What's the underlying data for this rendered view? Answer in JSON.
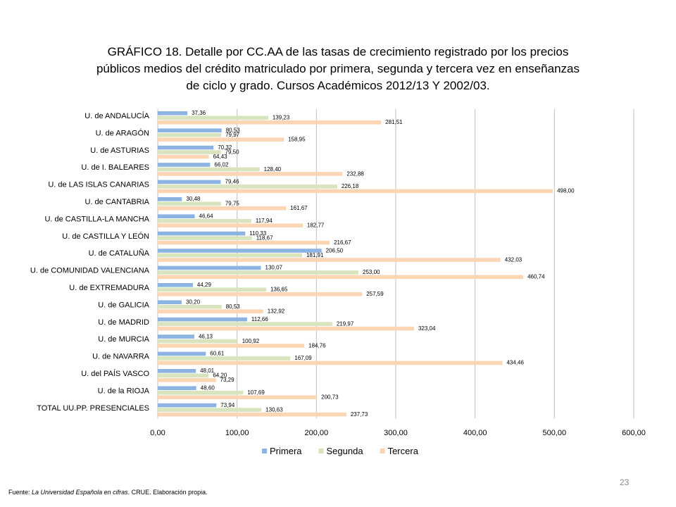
{
  "title_lines": [
    "GRÁFICO 18. Detalle por CC.AA de las tasas de crecimiento registrado por los precios",
    "públicos medios del crédito matriculado por primera, segunda y tercera vez en enseñanzas",
    "de ciclo y grado. Cursos Académicos  2012/13 Y 2002/03."
  ],
  "source": {
    "prefix": "Fuente: ",
    "italic": "La Universidad Española en cifras",
    "suffix": ". CRUE. Elaboración propia."
  },
  "page_number": "23",
  "chart_data": {
    "type": "bar",
    "orientation": "horizontal",
    "title": "GRÁFICO 18. Detalle por CC.AA de las tasas de crecimiento registrado por los precios públicos medios del crédito matriculado por primera, segunda y tercera vez en enseñanzas de ciclo y grado. Cursos Académicos  2012/13 Y 2002/03.",
    "xlim": [
      0,
      600
    ],
    "x_ticks": [
      0,
      100,
      200,
      300,
      400,
      500,
      600
    ],
    "x_tick_labels": [
      "0,00",
      "100,00",
      "200,00",
      "300,00",
      "400,00",
      "500,00",
      "600,00"
    ],
    "grid": true,
    "legend_position": "bottom",
    "categories": [
      "U. de ANDALUCÍA",
      "U. de ARAGÓN",
      "U. de ASTURIAS",
      "U. de I. BALEARES",
      "U. de LAS ISLAS CANARIAS",
      "U. de CANTABRIA",
      "U. de CASTILLA-LA MANCHA",
      "U. de CASTILLA Y LEÓN",
      "U. de CATALUÑA",
      "U. de COMUNIDAD VALENCIANA",
      "U. de EXTREMADURA",
      "U. de GALICIA",
      "U. de MADRID",
      "U. de MURCIA",
      "U. de NAVARRA",
      "U. del PAÍS VASCO",
      "U. de la RIOJA",
      "TOTAL UU.PP. PRESENCIALES"
    ],
    "series": [
      {
        "name": "Primera",
        "color": "#8db3e2",
        "values": [
          37.36,
          80.53,
          70.32,
          66.02,
          79.46,
          30.48,
          46.64,
          110.33,
          206.5,
          130.07,
          44.29,
          30.2,
          112.66,
          46.13,
          60.61,
          48.01,
          48.6,
          73.94
        ],
        "labels": [
          "37,36",
          "80,53",
          "70,32",
          "66,02",
          "79,46",
          "30,48",
          "46,64",
          "110,33",
          "206,50",
          "130,07",
          "44,29",
          "30,20",
          "112,66",
          "46,13",
          "60,61",
          "48,01",
          "48,60",
          "73,94"
        ]
      },
      {
        "name": "Segunda",
        "color": "#d7e4bd",
        "values": [
          139.23,
          79.97,
          79.5,
          128.4,
          226.18,
          79.75,
          117.94,
          118.67,
          181.91,
          253.0,
          136.65,
          80.53,
          219.97,
          100.92,
          167.09,
          64.2,
          107.69,
          130.63
        ],
        "labels": [
          "139,23",
          "79,97",
          "79,50",
          "128,40",
          "226,18",
          "79,75",
          "117,94",
          "118,67",
          "181,91",
          "253,00",
          "136,65",
          "80,53",
          "219,97",
          "100,92",
          "167,09",
          "64,20",
          "107,69",
          "130,63"
        ]
      },
      {
        "name": "Tercera",
        "color": "#fcd5b5",
        "values": [
          281.51,
          158.95,
          64.43,
          232.88,
          498.0,
          161.67,
          182.77,
          216.67,
          432.03,
          460.74,
          257.59,
          132.92,
          323.04,
          184.76,
          434.46,
          73.29,
          200.73,
          237.73
        ],
        "labels": [
          "281,51",
          "158,95",
          "64,43",
          "232,88",
          "498,00",
          "161,67",
          "182,77",
          "216,67",
          "432,03",
          "460,74",
          "257,59",
          "132,92",
          "323,04",
          "184,76",
          "434,46",
          "73,29",
          "200,73",
          "237,73"
        ]
      }
    ]
  }
}
